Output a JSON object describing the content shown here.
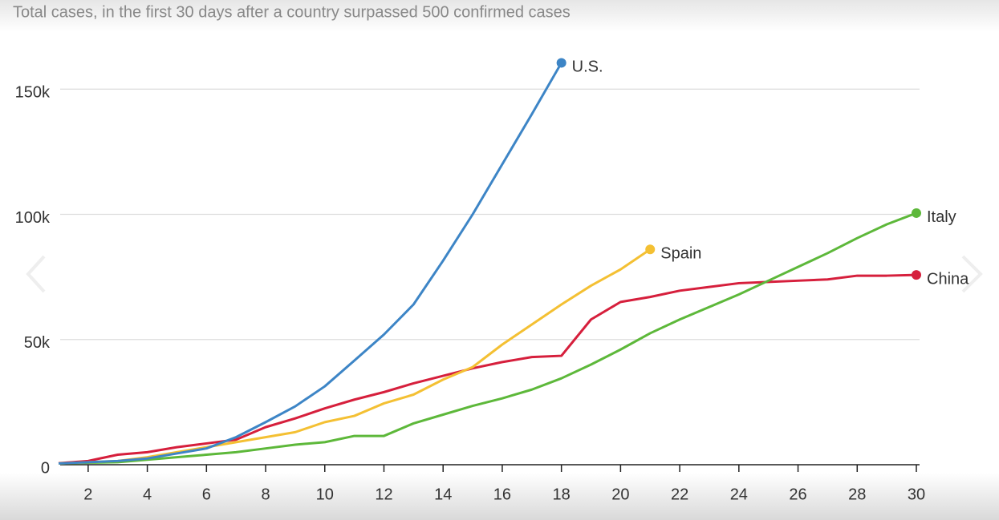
{
  "chart_data": {
    "type": "line",
    "title": "Total cases, in the first 30 days after a country surpassed 500 confirmed cases",
    "x": [
      1,
      2,
      3,
      4,
      5,
      6,
      7,
      8,
      9,
      10,
      11,
      12,
      13,
      14,
      15,
      16,
      17,
      18,
      19,
      20,
      21,
      22,
      23,
      24,
      25,
      26,
      27,
      28,
      29,
      30
    ],
    "xlim": [
      1,
      30
    ],
    "xticks": [
      2,
      4,
      6,
      8,
      10,
      12,
      14,
      16,
      18,
      20,
      22,
      24,
      26,
      28,
      30
    ],
    "ylim": [
      0,
      160000
    ],
    "yticks": [
      0,
      {
        "value": 50000,
        "label": "50k"
      },
      {
        "value": 100000,
        "label": "100k"
      },
      {
        "value": 150000,
        "label": "150k"
      }
    ],
    "grid": true,
    "series": [
      {
        "name": "China",
        "color": "#d61f3c",
        "values": [
          600,
          1500,
          4000,
          5000,
          7000,
          8500,
          10000,
          15000,
          18500,
          22500,
          26000,
          29000,
          32500,
          35500,
          38500,
          41000,
          43000,
          43500,
          58000,
          65000,
          67000,
          69500,
          71000,
          72500,
          73000,
          73500,
          74000,
          75500,
          75500,
          75800
        ]
      },
      {
        "name": "Italy",
        "color": "#5db83a",
        "values": [
          500,
          800,
          1000,
          2000,
          3000,
          4000,
          5000,
          6500,
          8000,
          9000,
          11500,
          11500,
          16500,
          20000,
          23500,
          26500,
          30000,
          34500,
          40000,
          46000,
          52500,
          58000,
          63000,
          68000,
          73500,
          79000,
          84500,
          90500,
          96000,
          100500
        ]
      },
      {
        "name": "Spain",
        "color": "#f4c033",
        "values": [
          500,
          1000,
          1500,
          3000,
          5000,
          7000,
          9000,
          11000,
          13000,
          17000,
          19500,
          24500,
          28000,
          34000,
          39000,
          48000,
          56000,
          64000,
          71500,
          78000,
          86000,
          null,
          null,
          null,
          null,
          null,
          null,
          null,
          null,
          null
        ]
      },
      {
        "name": "U.S.",
        "color": "#3d85c6",
        "values": [
          500,
          1000,
          1500,
          2500,
          4500,
          6500,
          11000,
          17000,
          23300,
          31300,
          41600,
          52000,
          64000,
          81500,
          100000,
          120000,
          140000,
          160500,
          null,
          null,
          null,
          null,
          null,
          null,
          null,
          null,
          null,
          null,
          null,
          null
        ]
      }
    ]
  }
}
